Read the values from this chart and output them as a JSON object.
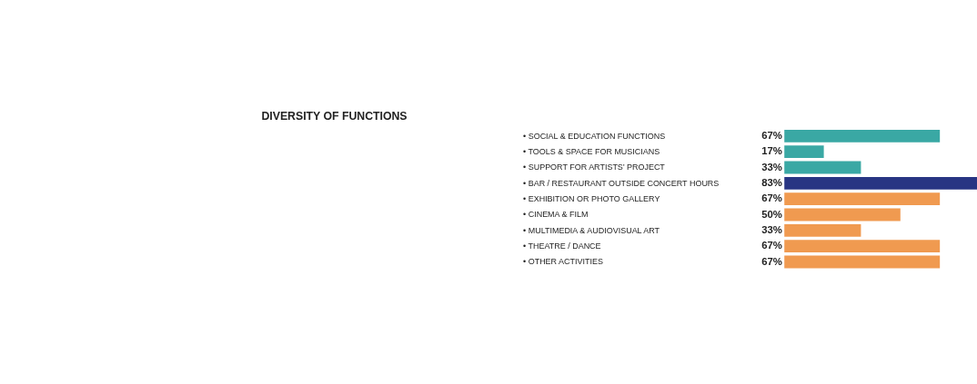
{
  "chart_data": {
    "type": "bar",
    "orientation": "horizontal",
    "title": "DIVERSITY OF FUNCTIONS",
    "categories": [
      "• SOCIAL & EDUCATION FUNCTIONS",
      "• TOOLS & SPACE FOR MUSICIANS",
      "• SUPPORT FOR ARTISTS’ PROJECT",
      "• BAR / RESTAURANT OUTSIDE CONCERT HOURS",
      "• EXHIBITION OR PHOTO GALLERY",
      "• CINEMA & FILM",
      "• MULTIMEDIA & AUDIOVISUAL ART",
      "• THEATRE / DANCE",
      "• OTHER ACTIVITIES"
    ],
    "values": [
      67,
      17,
      33,
      83,
      67,
      50,
      33,
      67,
      67
    ],
    "value_labels": [
      "67%",
      "17%",
      "33%",
      "83%",
      "67%",
      "50%",
      "33%",
      "67%",
      "67%"
    ],
    "colors": [
      "#3aa8a4",
      "#3aa8a4",
      "#3aa8a4",
      "#283583",
      "#f09a50",
      "#f09a50",
      "#f09a50",
      "#f09a50",
      "#f09a50"
    ]
  }
}
